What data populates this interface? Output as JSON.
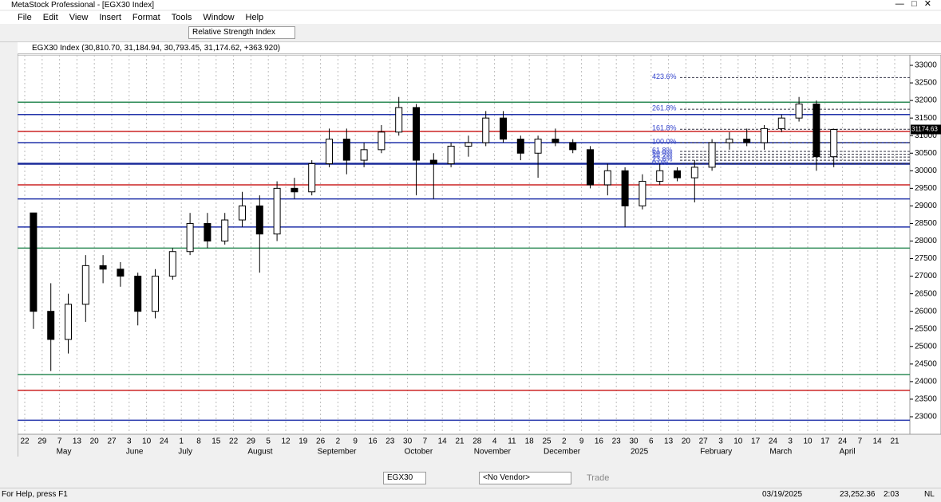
{
  "window": {
    "title": "MetaStock Professional - [EGX30 Index]",
    "menu": [
      "File",
      "Edit",
      "View",
      "Insert",
      "Format",
      "Tools",
      "Window",
      "Help"
    ],
    "indicator": "Relative Strength Index"
  },
  "chart_data": {
    "type": "candlestick",
    "title": "EGX30 Index (30,810.70, 31,184.94, 30,793.45, 31,174.62, +363.920)",
    "ylim": [
      23000,
      33000
    ],
    "yticks": [
      23000,
      23500,
      24000,
      24500,
      25000,
      25500,
      26000,
      26500,
      27000,
      27500,
      28000,
      28500,
      29000,
      29500,
      30000,
      30500,
      31000,
      31500,
      32000,
      32500,
      33000
    ],
    "xticks": [
      "22",
      "29",
      "7",
      "13",
      "20",
      "27",
      "3",
      "10",
      "24",
      "1",
      "8",
      "15",
      "22",
      "29",
      "5",
      "12",
      "19",
      "26",
      "2",
      "9",
      "16",
      "23",
      "30",
      "7",
      "14",
      "21",
      "28",
      "4",
      "11",
      "18",
      "25",
      "2",
      "9",
      "16",
      "23",
      "30",
      "6",
      "13",
      "20",
      "27",
      "3",
      "10",
      "17",
      "24",
      "3",
      "10",
      "17",
      "24",
      "7",
      "14",
      "21"
    ],
    "months": [
      {
        "index": 2,
        "label": "May"
      },
      {
        "index": 6,
        "label": "June"
      },
      {
        "index": 9,
        "label": "July"
      },
      {
        "index": 13,
        "label": "August"
      },
      {
        "index": 17,
        "label": "September"
      },
      {
        "index": 22,
        "label": "October"
      },
      {
        "index": 26,
        "label": "November"
      },
      {
        "index": 30,
        "label": "December"
      },
      {
        "index": 35,
        "label": "2025"
      },
      {
        "index": 39,
        "label": "February"
      },
      {
        "index": 43,
        "label": "March"
      },
      {
        "index": 47,
        "label": "April"
      }
    ],
    "candles": [
      [
        28800,
        28800,
        25500,
        26000
      ],
      [
        26000,
        26800,
        24300,
        25200
      ],
      [
        25200,
        26500,
        24800,
        26200
      ],
      [
        26200,
        27600,
        25700,
        27300
      ],
      [
        27300,
        27600,
        26800,
        27200
      ],
      [
        27200,
        27400,
        26700,
        27000
      ],
      [
        27000,
        27100,
        25600,
        26000
      ],
      [
        26000,
        27200,
        25800,
        27000
      ],
      [
        27000,
        27800,
        26900,
        27700
      ],
      [
        27700,
        28800,
        27600,
        28500
      ],
      [
        28500,
        28800,
        27800,
        28000
      ],
      [
        28000,
        28800,
        27900,
        28600
      ],
      [
        28600,
        29400,
        28400,
        29000
      ],
      [
        29000,
        29300,
        27100,
        28200
      ],
      [
        28200,
        29700,
        28000,
        29500
      ],
      [
        29500,
        29800,
        29200,
        29400
      ],
      [
        29400,
        30300,
        29300,
        30200
      ],
      [
        30200,
        31200,
        30100,
        30900
      ],
      [
        30900,
        31200,
        29900,
        30300
      ],
      [
        30300,
        30800,
        30100,
        30600
      ],
      [
        30600,
        31300,
        30500,
        31100
      ],
      [
        31100,
        32100,
        31000,
        31800
      ],
      [
        31800,
        31900,
        29300,
        30300
      ],
      [
        30300,
        30500,
        29200,
        30200
      ],
      [
        30200,
        30800,
        30100,
        30700
      ],
      [
        30700,
        31000,
        30400,
        30800
      ],
      [
        30800,
        31700,
        30700,
        31500
      ],
      [
        31500,
        31700,
        30800,
        30900
      ],
      [
        30900,
        31000,
        30300,
        30500
      ],
      [
        30500,
        31000,
        29800,
        30900
      ],
      [
        30900,
        31200,
        30700,
        30800
      ],
      [
        30800,
        30900,
        30500,
        30600
      ],
      [
        30600,
        30700,
        29500,
        29600
      ],
      [
        29600,
        30200,
        29300,
        30000
      ],
      [
        30000,
        30100,
        28400,
        29000
      ],
      [
        29000,
        29900,
        28900,
        29700
      ],
      [
        29700,
        30200,
        29600,
        30000
      ],
      [
        30000,
        30100,
        29700,
        29800
      ],
      [
        29800,
        30300,
        29100,
        30100
      ],
      [
        30100,
        30900,
        30000,
        30800
      ],
      [
        30800,
        31100,
        30600,
        30900
      ],
      [
        30900,
        31200,
        30700,
        30800
      ],
      [
        30800,
        31300,
        30600,
        31200
      ],
      [
        31200,
        31600,
        31100,
        31500
      ],
      [
        31500,
        32100,
        31400,
        31900
      ],
      [
        31900,
        32000,
        30000,
        30400
      ],
      [
        30400,
        31200,
        30100,
        31175
      ]
    ],
    "levels": [
      {
        "value": 31950,
        "color": "#2e8b57"
      },
      {
        "value": 31600,
        "color": "#2233aa"
      },
      {
        "value": 31120,
        "color": "#cc2222"
      },
      {
        "value": 30800,
        "color": "#2233aa"
      },
      {
        "value": 30200,
        "color": "#1a2a9a"
      },
      {
        "value": 29600,
        "color": "#cc2222"
      },
      {
        "value": 29200,
        "color": "#2233aa"
      },
      {
        "value": 28400,
        "color": "#2233aa"
      },
      {
        "value": 27800,
        "color": "#2e8b57"
      },
      {
        "value": 24200,
        "color": "#2e8b57"
      },
      {
        "value": 23750,
        "color": "#cc2222"
      },
      {
        "value": 22900,
        "color": "#2233aa"
      }
    ],
    "fib": [
      {
        "value": 32650,
        "label": "423.6%"
      },
      {
        "value": 31750,
        "label": "261.8%"
      },
      {
        "value": 31180,
        "label": "161.8%"
      },
      {
        "value": 30800,
        "label": "100.0%"
      },
      {
        "value": 30550,
        "label": "61.8%"
      },
      {
        "value": 30470,
        "label": "50.0%"
      },
      {
        "value": 30390,
        "label": "38.2%"
      },
      {
        "value": 30300,
        "label": "23.6%"
      },
      {
        "value": 30200,
        "label": "0.0%"
      }
    ],
    "last_price": 31174.63
  },
  "bottom": {
    "symbol": "EGX30",
    "vendor": "<No Vendor>",
    "trade": "Trade"
  },
  "status": {
    "help": "For Help, press F1",
    "date": "03/19/2025",
    "value": "23,252.36",
    "time": "2:03",
    "mode": "NL"
  }
}
